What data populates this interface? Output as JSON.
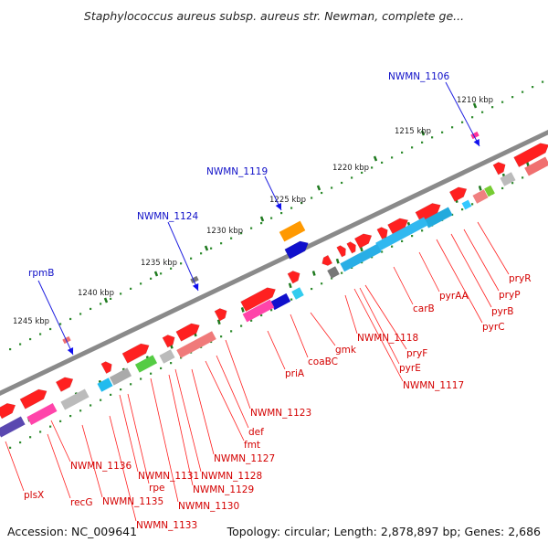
{
  "title": "Staphylococcus aureus subsp. aureus str. Newman, complete ge...",
  "footer": {
    "accession": "Accession: NC_009641",
    "summary": "Topology: circular; Length: 2,878,897 bp; Genes: 2,686"
  },
  "colors": {
    "backbone": "#8a8a8a",
    "tick_dots": "#2e8b2e",
    "tick_dashes": "#1f7a1f",
    "forward_arrow": "#ff2020",
    "feature_label": "#d40000",
    "locus_label": "#1010c8",
    "locus_line": "#2020e0"
  },
  "scale": {
    "unit": "kbp",
    "ticks": [
      "1210 kbp",
      "1215 kbp",
      "1220 kbp",
      "1225 kbp",
      "1230 kbp",
      "1235 kbp",
      "1240 kbp",
      "1245 kbp"
    ]
  },
  "loci": [
    "NWMN_1106",
    "NWMN_1119",
    "NWMN_1124",
    "rpmB"
  ],
  "features": [
    "pryR",
    "pryP",
    "pyrB",
    "pyrC",
    "pyrAA",
    "carB",
    "NWMN_1118",
    "pryF",
    "pyrE",
    "NWMN_1117",
    "gmk",
    "coaBC",
    "priA",
    "NWMN_1123",
    "def",
    "fmt",
    "NWMN_1127",
    "NWMN_1128",
    "NWMN_1129",
    "NWMN_1130",
    "NWMN_1131",
    "rpe",
    "NWMN_1136",
    "NWMN_1135",
    "NWMN_1133",
    "recG",
    "plsX"
  ]
}
